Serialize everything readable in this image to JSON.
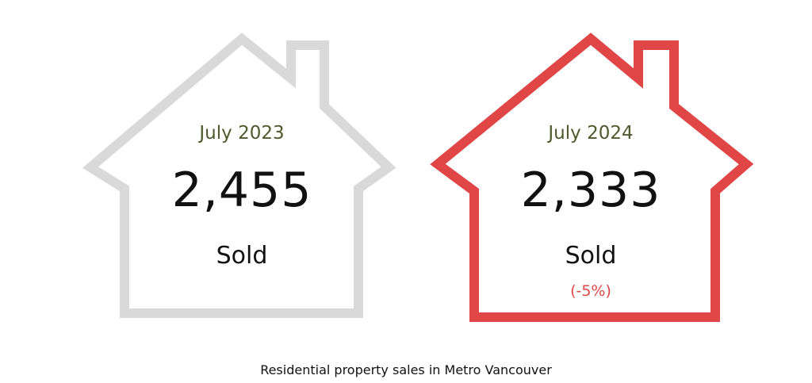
{
  "chart_data": {
    "type": "pictograph",
    "title": "",
    "caption": "Residential property sales in Metro Vancouver",
    "items": [
      {
        "period": "July 2023",
        "value": 2455,
        "value_label": "2,455",
        "unit": "Sold",
        "change": "",
        "color": "#d9d9d9"
      },
      {
        "period": "July 2024",
        "value": 2333,
        "value_label": "2,333",
        "unit": "Sold",
        "change": "(-5%)",
        "color": "#e04646"
      }
    ]
  },
  "colors": {
    "accent_red": "#e04646",
    "neutral_gray": "#d9d9d9",
    "period_text": "#4f5a2c"
  }
}
